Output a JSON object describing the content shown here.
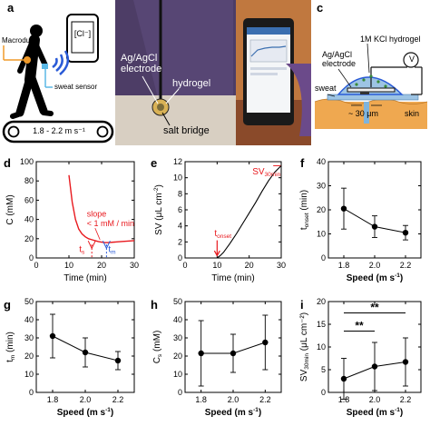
{
  "panels": {
    "a": "a",
    "b": "b",
    "c": "c",
    "d": "d",
    "e": "e",
    "f": "f",
    "g": "g",
    "h": "h",
    "i": "i"
  },
  "panel_a": {
    "phone_text": "[Cl⁻]",
    "macroduct_label": "Macroduct",
    "sweat_sensor_label": "sweat sensor",
    "treadmill_label": "1.8 - 2.2 m s⁻¹"
  },
  "panel_b": {
    "electrode_label_line1": "Ag/AgCl",
    "electrode_label_line2": "electrode",
    "hydrogel_label": "hydrogel",
    "salt_bridge_label": "salt bridge"
  },
  "panel_c": {
    "kcl_label": "1M KCl hydrogel",
    "electrode_label_line1": "Ag/AgCl",
    "electrode_label_line2": "electrode",
    "voltmeter_symbol": "V",
    "sweat_label": "sweat",
    "gap_label": "~ 30 μm",
    "skin_label": "skin"
  },
  "colors": {
    "accent_red": "#e8191e",
    "accent_blue": "#2a5bd7",
    "skin": "#efa850",
    "hydrogel": "#9dc4e4"
  },
  "chart_data": [
    {
      "id": "d",
      "type": "line",
      "xlabel": "Time (min)",
      "ylabel": "C (mM)",
      "xlim": [
        0,
        30
      ],
      "ylim": [
        0,
        100
      ],
      "xticks": [
        0,
        10,
        20,
        30
      ],
      "yticks": [
        0,
        20,
        40,
        60,
        80,
        100
      ],
      "series": [
        {
          "x": [
            10,
            11,
            12,
            13,
            14,
            15,
            16,
            17,
            18,
            19,
            20,
            21,
            22,
            24,
            26,
            28,
            30
          ],
          "y": [
            86,
            58,
            40,
            30,
            25,
            22,
            20,
            19,
            18,
            17,
            16.5,
            16,
            16,
            16.5,
            17,
            17.5,
            18
          ]
        }
      ],
      "annotations": {
        "slope_line1": "slope",
        "slope_line2": "< 1 mM / min",
        "ts_label": "t",
        "ts_sub": "s",
        "tm_label": "t",
        "tm_sub": "m",
        "ts_x": 17,
        "tm_x": 21.5
      }
    },
    {
      "id": "e",
      "type": "line",
      "xlabel": "Time (min)",
      "ylabel_main": "SV (μL cm",
      "ylabel_sup": "-2",
      "ylabel_end": ")",
      "xlim": [
        0,
        30
      ],
      "ylim": [
        0,
        12
      ],
      "xticks": [
        0,
        10,
        20,
        30
      ],
      "yticks": [
        0,
        2,
        4,
        6,
        8,
        10,
        12
      ],
      "series": [
        {
          "x": [
            10,
            11,
            12,
            14,
            16,
            18,
            20,
            22,
            24,
            26,
            28,
            30
          ],
          "y": [
            0,
            0.3,
            0.7,
            1.8,
            3.0,
            4.3,
            5.6,
            6.9,
            8.3,
            9.6,
            10.7,
            11.5
          ]
        }
      ],
      "annotations": {
        "onset_label": "t",
        "onset_sub": "onset",
        "onset_x": 10,
        "sv_label": "SV",
        "sv_sub": "30min",
        "sv_y": 11.5
      }
    },
    {
      "id": "f",
      "type": "line_errorbar",
      "xlabel_main": "Speed (m s",
      "xlabel_sup": "-1",
      "xlabel_end": ")",
      "ylabel_main": "t",
      "ylabel_sub": "onset",
      "ylabel_end": " (min)",
      "x": [
        1.8,
        2.0,
        2.2
      ],
      "y": [
        20.5,
        13,
        10.5
      ],
      "err": [
        8.5,
        4.5,
        3
      ],
      "xlim": [
        1.7,
        2.3
      ],
      "ylim": [
        0,
        40
      ],
      "xticks": [
        1.8,
        2.0,
        2.2
      ],
      "xticklabels": [
        "1.8",
        "2.0",
        "2.2"
      ],
      "yticks": [
        0,
        10,
        20,
        30,
        40
      ]
    },
    {
      "id": "g",
      "type": "line_errorbar",
      "xlabel_main": "Speed (m s",
      "xlabel_sup": "-1",
      "xlabel_end": ")",
      "ylabel_main": "t",
      "ylabel_sub": "m",
      "ylabel_end": " (min)",
      "x": [
        1.8,
        2.0,
        2.2
      ],
      "y": [
        31,
        22,
        17.5
      ],
      "err": [
        12,
        8,
        5
      ],
      "xlim": [
        1.7,
        2.3
      ],
      "ylim": [
        0,
        50
      ],
      "xticks": [
        1.8,
        2.0,
        2.2
      ],
      "xticklabels": [
        "1.8",
        "2.0",
        "2.2"
      ],
      "yticks": [
        0,
        10,
        20,
        30,
        40,
        50
      ]
    },
    {
      "id": "h",
      "type": "line_errorbar",
      "xlabel_main": "Speed (m s",
      "xlabel_sup": "-1",
      "xlabel_end": ")",
      "ylabel_main": "C",
      "ylabel_sub": "s",
      "ylabel_end": " (mM)",
      "x": [
        1.8,
        2.0,
        2.2
      ],
      "y": [
        21.5,
        21.5,
        27.5
      ],
      "err": [
        18,
        10.5,
        15
      ],
      "xlim": [
        1.7,
        2.3
      ],
      "ylim": [
        0,
        50
      ],
      "xticks": [
        1.8,
        2.0,
        2.2
      ],
      "xticklabels": [
        "1.8",
        "2.0",
        "2.2"
      ],
      "yticks": [
        0,
        10,
        20,
        30,
        40,
        50
      ]
    },
    {
      "id": "i",
      "type": "line_errorbar",
      "xlabel_main": "Speed (m s",
      "xlabel_sup": "-1",
      "xlabel_end": ")",
      "ylabel_main": "SV",
      "ylabel_sub": "30min",
      "ylabel_end": " (μL cm⁻²)",
      "x": [
        1.8,
        2.0,
        2.2
      ],
      "y": [
        3,
        5.7,
        6.7
      ],
      "err": [
        4.5,
        5.3,
        5.3
      ],
      "xlim": [
        1.7,
        2.3
      ],
      "ylim": [
        0,
        20
      ],
      "xticks": [
        1.8,
        2.0,
        2.2
      ],
      "xticklabels": [
        "1.8",
        "2.0",
        "2.2"
      ],
      "yticks": [
        0,
        5,
        10,
        15,
        20
      ],
      "significance": [
        {
          "from": 1.8,
          "to": 2.0,
          "label": "**",
          "level": 13.5
        },
        {
          "from": 1.8,
          "to": 2.2,
          "label": "**",
          "level": 17.5
        }
      ]
    }
  ]
}
